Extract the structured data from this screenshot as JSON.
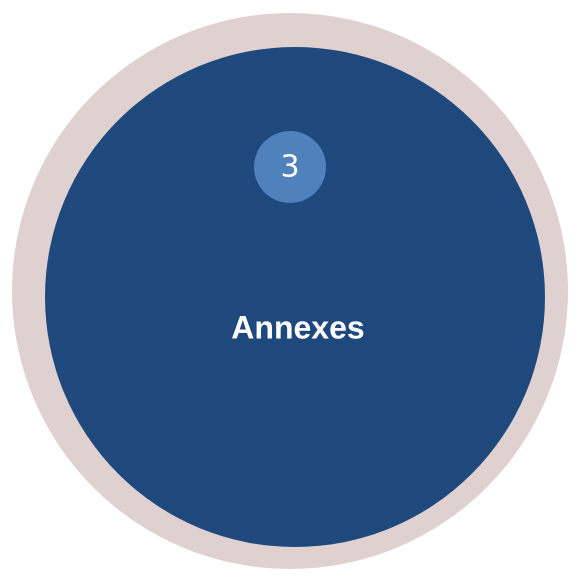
{
  "badge": {
    "label": "3"
  },
  "title": "Annexes"
}
